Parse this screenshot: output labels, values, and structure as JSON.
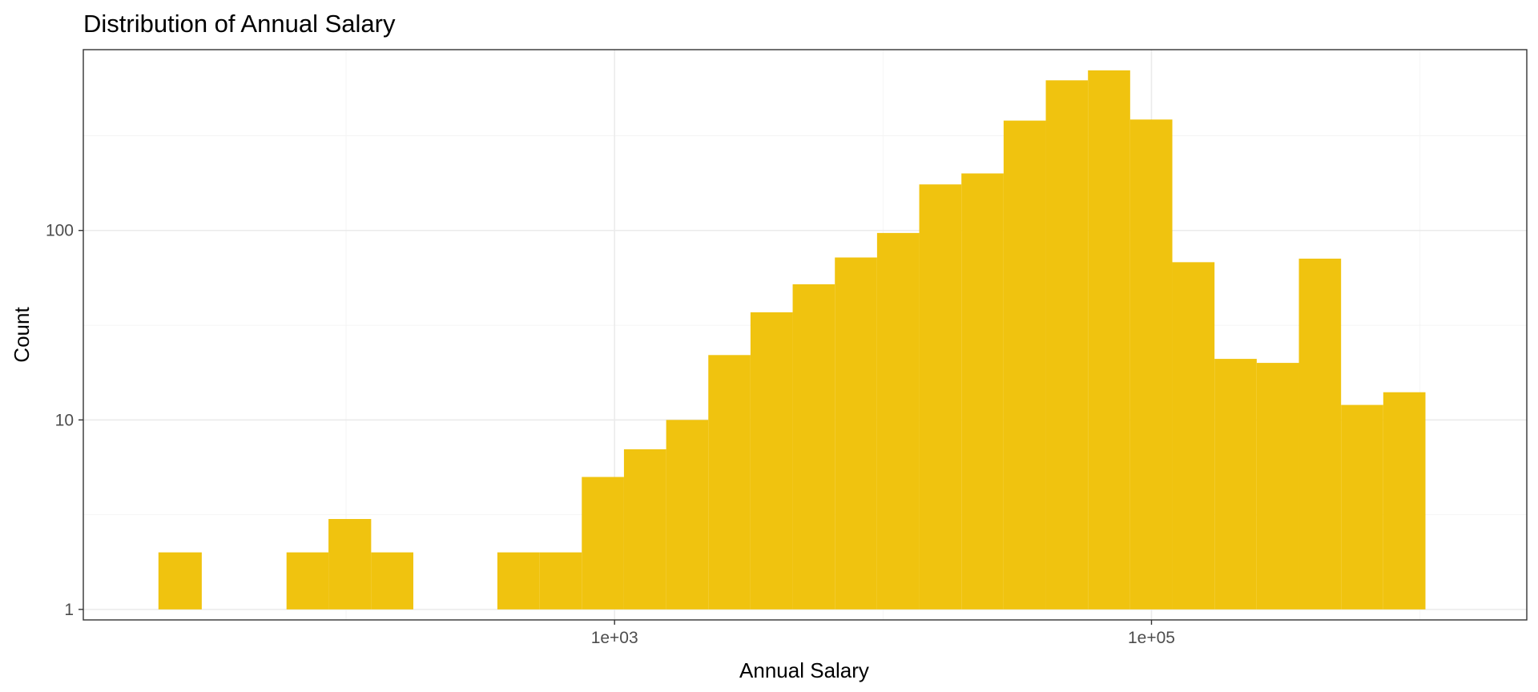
{
  "chart_data": {
    "type": "bar",
    "subtype": "histogram",
    "title": "Distribution of Annual Salary",
    "xlabel": "Annual Salary",
    "ylabel": "Count",
    "x_scale": "log10",
    "y_scale": "log10",
    "xlim": [
      10.5,
      2500000
    ],
    "ylim": [
      0.88,
      900
    ],
    "x_ticks": [
      {
        "value": 1000,
        "label": "1e+03"
      },
      {
        "value": 100000,
        "label": "1e+05"
      }
    ],
    "x_minor_ticks": [
      100,
      10000,
      1000000
    ],
    "y_ticks": [
      {
        "value": 1,
        "label": "1"
      },
      {
        "value": 10,
        "label": "10"
      },
      {
        "value": 100,
        "label": "100"
      }
    ],
    "y_minor_ticks": [
      3.16,
      31.6,
      316
    ],
    "bar_color": "#F0C30F",
    "grid": true,
    "bins": [
      {
        "x_start": 20,
        "x_end": 29,
        "count": 2
      },
      {
        "x_start": 29,
        "x_end": 42,
        "count": 0
      },
      {
        "x_start": 42,
        "x_end": 60,
        "count": 0
      },
      {
        "x_start": 60,
        "x_end": 86,
        "count": 2
      },
      {
        "x_start": 86,
        "x_end": 124,
        "count": 3
      },
      {
        "x_start": 124,
        "x_end": 178,
        "count": 2
      },
      {
        "x_start": 178,
        "x_end": 255,
        "count": 0
      },
      {
        "x_start": 255,
        "x_end": 366,
        "count": 0
      },
      {
        "x_start": 366,
        "x_end": 526,
        "count": 2
      },
      {
        "x_start": 526,
        "x_end": 755,
        "count": 2
      },
      {
        "x_start": 755,
        "x_end": 1084,
        "count": 5
      },
      {
        "x_start": 1084,
        "x_end": 1557,
        "count": 7
      },
      {
        "x_start": 1557,
        "x_end": 2235,
        "count": 10
      },
      {
        "x_start": 2235,
        "x_end": 3209,
        "count": 22
      },
      {
        "x_start": 3209,
        "x_end": 4608,
        "count": 37
      },
      {
        "x_start": 4608,
        "x_end": 6617,
        "count": 52
      },
      {
        "x_start": 6617,
        "x_end": 9501,
        "count": 72
      },
      {
        "x_start": 9501,
        "x_end": 13643,
        "count": 97
      },
      {
        "x_start": 13643,
        "x_end": 19590,
        "count": 175
      },
      {
        "x_start": 19590,
        "x_end": 28130,
        "count": 200
      },
      {
        "x_start": 28130,
        "x_end": 40393,
        "count": 380
      },
      {
        "x_start": 40393,
        "x_end": 58000,
        "count": 620
      },
      {
        "x_start": 58000,
        "x_end": 83284,
        "count": 700
      },
      {
        "x_start": 83284,
        "x_end": 119589,
        "count": 385
      },
      {
        "x_start": 119589,
        "x_end": 171721,
        "count": 68
      },
      {
        "x_start": 171721,
        "x_end": 246577,
        "count": 21
      },
      {
        "x_start": 246577,
        "x_end": 354066,
        "count": 20
      },
      {
        "x_start": 354066,
        "x_end": 508409,
        "count": 71
      },
      {
        "x_start": 508409,
        "x_end": 730032,
        "count": 12
      },
      {
        "x_start": 730032,
        "x_end": 1048265,
        "count": 14
      }
    ]
  }
}
